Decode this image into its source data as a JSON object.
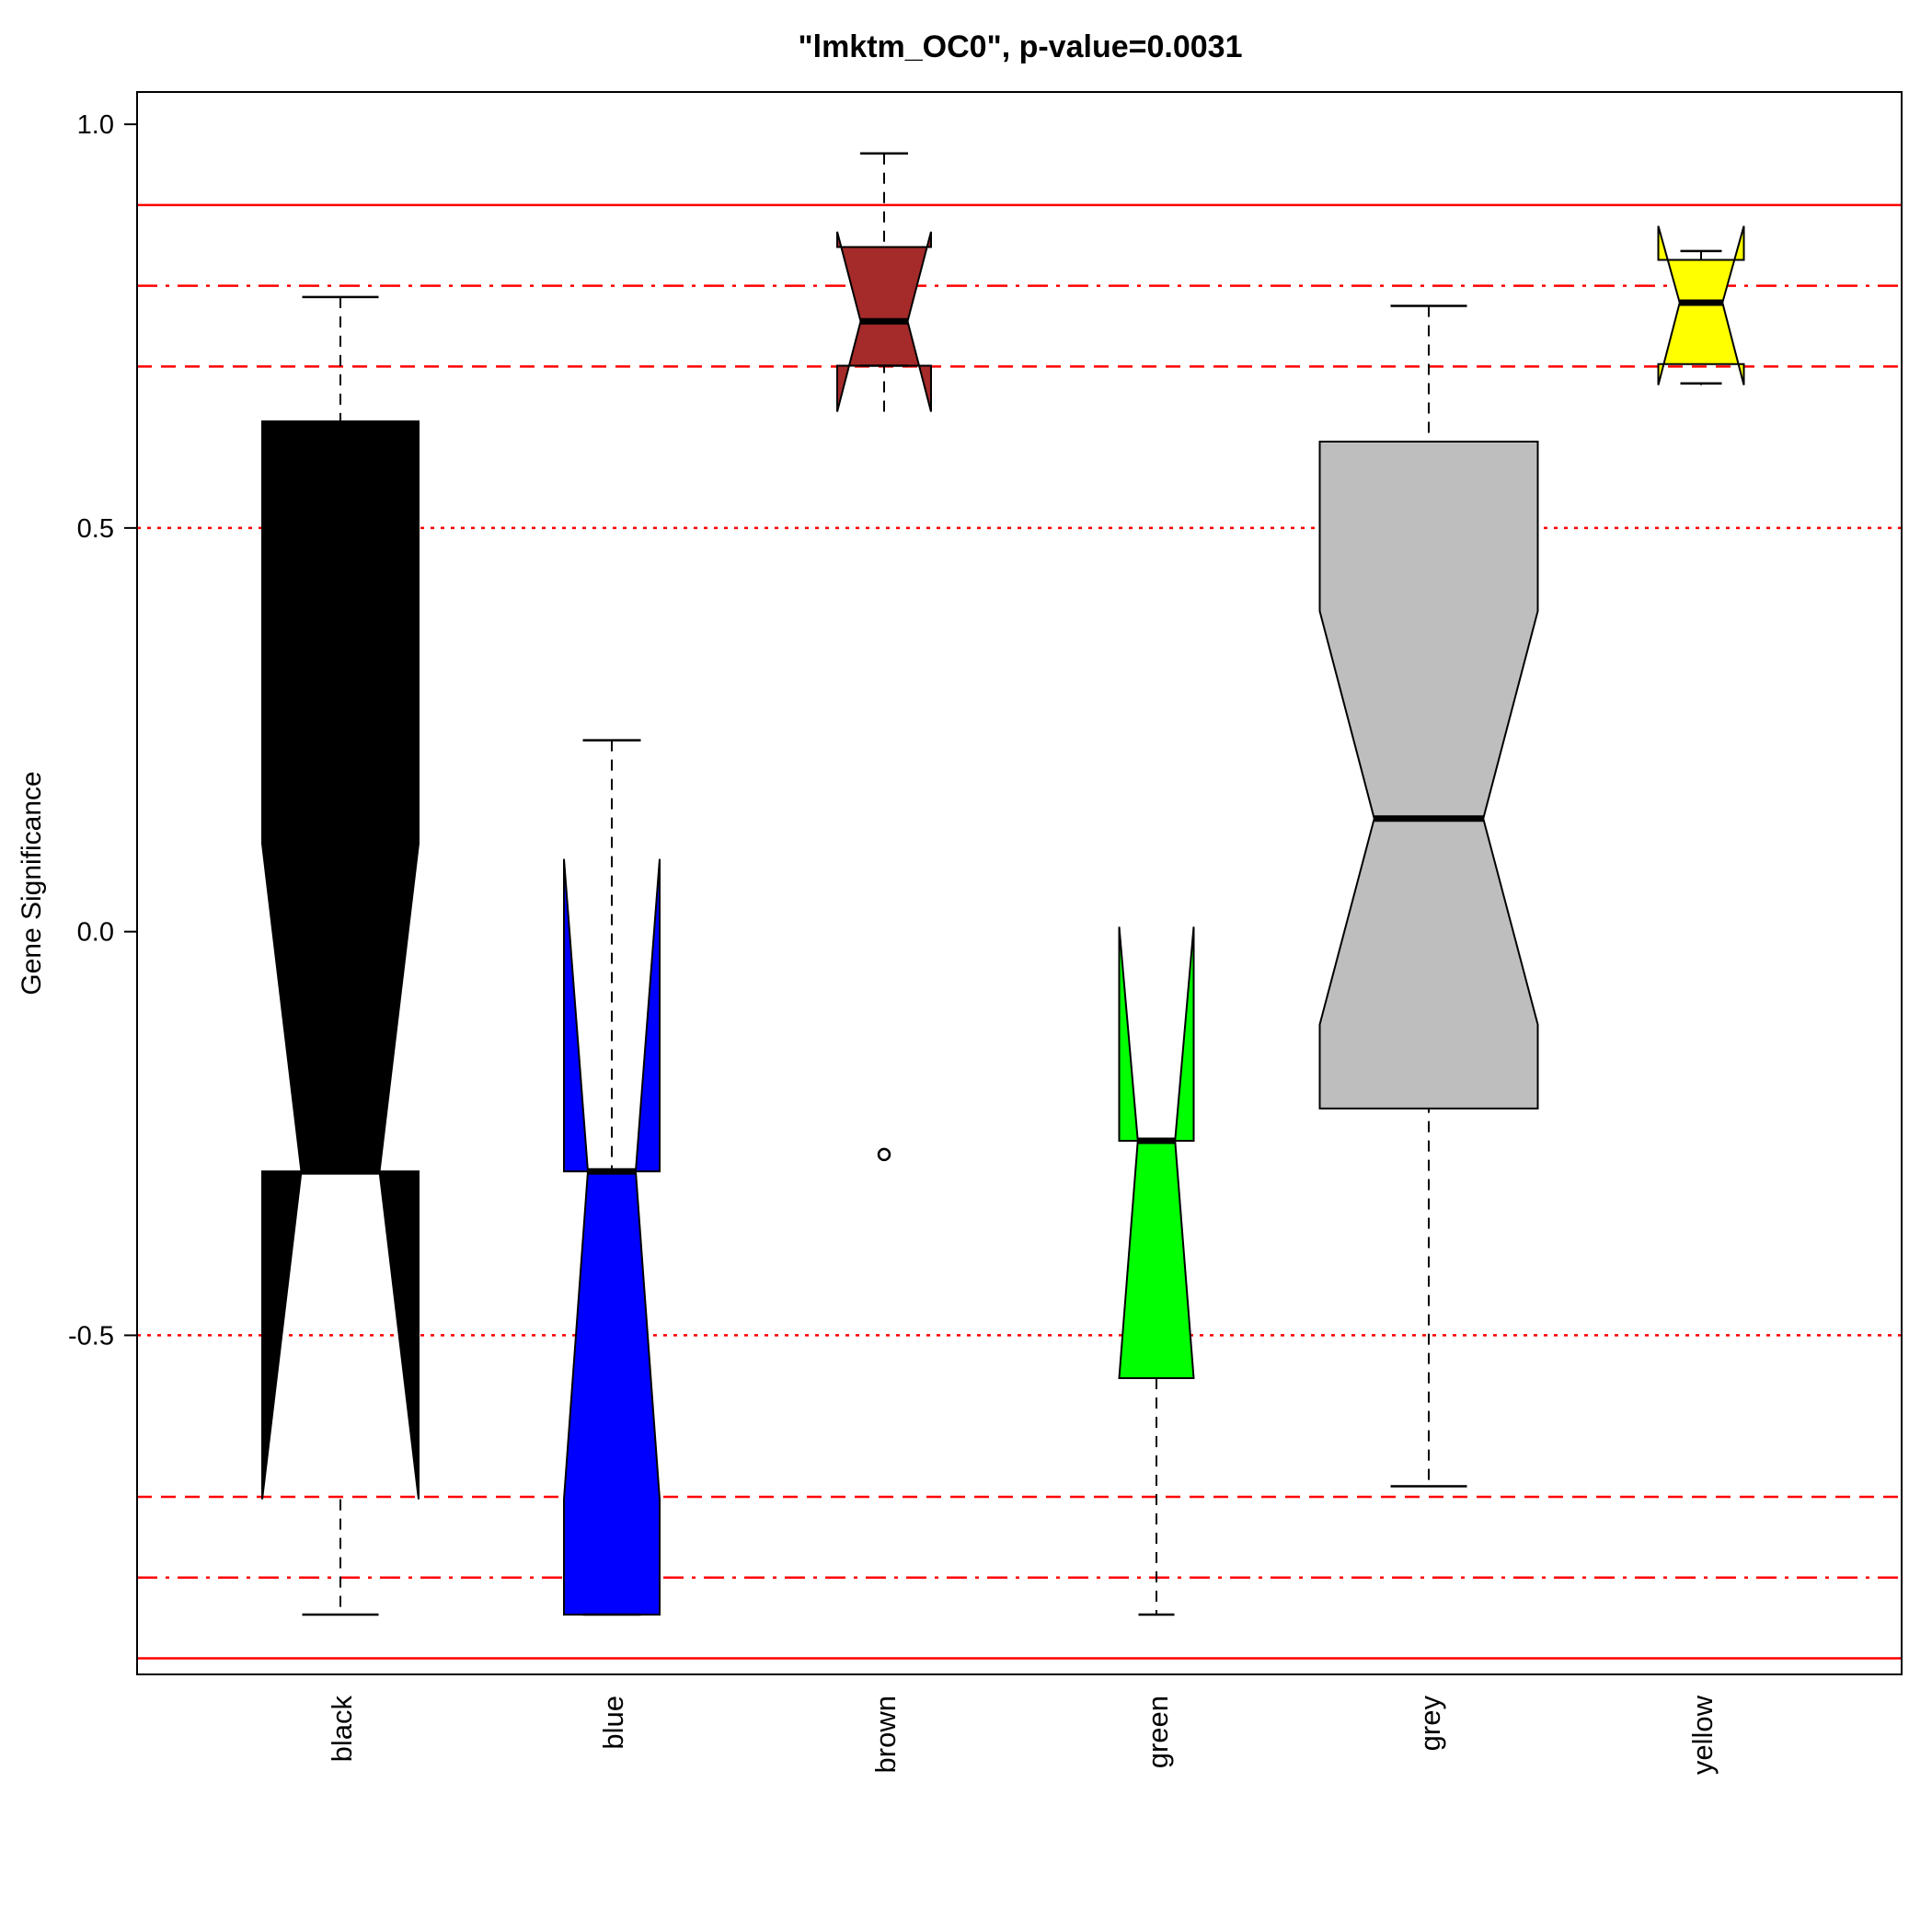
{
  "chart_data": {
    "type": "boxplot",
    "notched": true,
    "title": "\"lmktm_OC0\", p-value=0.0031",
    "xlabel": "",
    "ylabel": "Gene Significance",
    "ylim": [
      -0.92,
      1.04
    ],
    "y_ticks": [
      1.0,
      0.5,
      0.0,
      -0.5
    ],
    "y_tick_labels": [
      "1.0",
      "0.5",
      "0.0",
      "-0.5"
    ],
    "categories": [
      "black",
      "blue",
      "brown",
      "green",
      "grey",
      "yellow"
    ],
    "boxes": [
      {
        "name": "black",
        "color": "#000000",
        "min": -0.846,
        "q1": -0.297,
        "median": -0.297,
        "q3": 0.632,
        "max": 0.786,
        "notch_lo": -0.703,
        "notch_hi": 0.109,
        "outliers": []
      },
      {
        "name": "blue",
        "color": "#0000ff",
        "min": -0.846,
        "q1": -0.846,
        "median": -0.297,
        "q3": -0.297,
        "max": 0.237,
        "notch_lo": -0.703,
        "notch_hi": 0.09,
        "outliers": []
      },
      {
        "name": "brown",
        "color": "#a52a2a",
        "min": 0.701,
        "q1": 0.701,
        "median": 0.756,
        "q3": 0.848,
        "max": 0.964,
        "notch_lo": 0.644,
        "notch_hi": 0.867,
        "outliers": [
          -0.276
        ]
      },
      {
        "name": "green",
        "color": "#00ff00",
        "min": -0.846,
        "q1": -0.553,
        "median": -0.259,
        "q3": -0.259,
        "max": -0.259,
        "notch_lo": -0.553,
        "notch_hi": 0.006,
        "outliers": []
      },
      {
        "name": "grey",
        "color": "#bebebe",
        "min": -0.687,
        "q1": -0.219,
        "median": 0.14,
        "q3": 0.607,
        "max": 0.775,
        "notch_lo": -0.115,
        "notch_hi": 0.397,
        "outliers": []
      },
      {
        "name": "yellow",
        "color": "#ffff00",
        "min": 0.679,
        "q1": 0.703,
        "median": 0.779,
        "q3": 0.832,
        "max": 0.843,
        "notch_lo": 0.677,
        "notch_hi": 0.874,
        "outliers": []
      }
    ],
    "reference_lines": [
      {
        "y": 0.9,
        "style": "solid",
        "color": "#ff0000"
      },
      {
        "y": 0.8,
        "style": "dashdot",
        "color": "#ff0000"
      },
      {
        "y": 0.7,
        "style": "dashed",
        "color": "#ff0000"
      },
      {
        "y": 0.5,
        "style": "dotted",
        "color": "#ff0000"
      },
      {
        "y": -0.5,
        "style": "dotted",
        "color": "#ff0000"
      },
      {
        "y": -0.7,
        "style": "dashed",
        "color": "#ff0000"
      },
      {
        "y": -0.8,
        "style": "dashdot",
        "color": "#ff0000"
      },
      {
        "y": -0.9,
        "style": "solid",
        "color": "#ff0000"
      }
    ],
    "grid": false,
    "legend": "none"
  }
}
